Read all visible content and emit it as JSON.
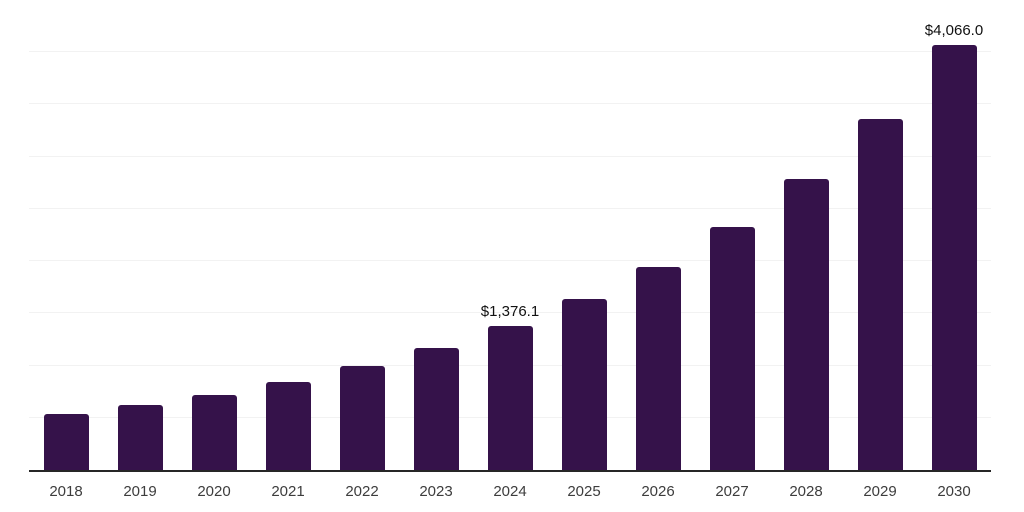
{
  "chart_data": {
    "type": "bar",
    "title": "",
    "xlabel": "",
    "ylabel": "",
    "categories": [
      "2018",
      "2019",
      "2020",
      "2021",
      "2022",
      "2023",
      "2024",
      "2025",
      "2026",
      "2027",
      "2028",
      "2029",
      "2030"
    ],
    "values": [
      535,
      624,
      722,
      842,
      994,
      1166,
      1376.1,
      1636,
      1942,
      2324,
      2789,
      3364,
      4066.0
    ],
    "data_labels": [
      {
        "index": 6,
        "category": "2024",
        "text": "$1,376.1"
      },
      {
        "index": 12,
        "category": "2030",
        "text": "$4,066.0"
      }
    ],
    "ylim": [
      0,
      4500
    ],
    "gridline_step": 500,
    "grid": true,
    "legend": false,
    "y_axis_tick_labels_visible": false
  },
  "colors": {
    "bar": "#35124a",
    "grid_line": "#f2f2f2",
    "axis_line": "#262626",
    "tick_label": "#3d3d3d",
    "value_label": "#111111",
    "background": "#ffffff"
  }
}
